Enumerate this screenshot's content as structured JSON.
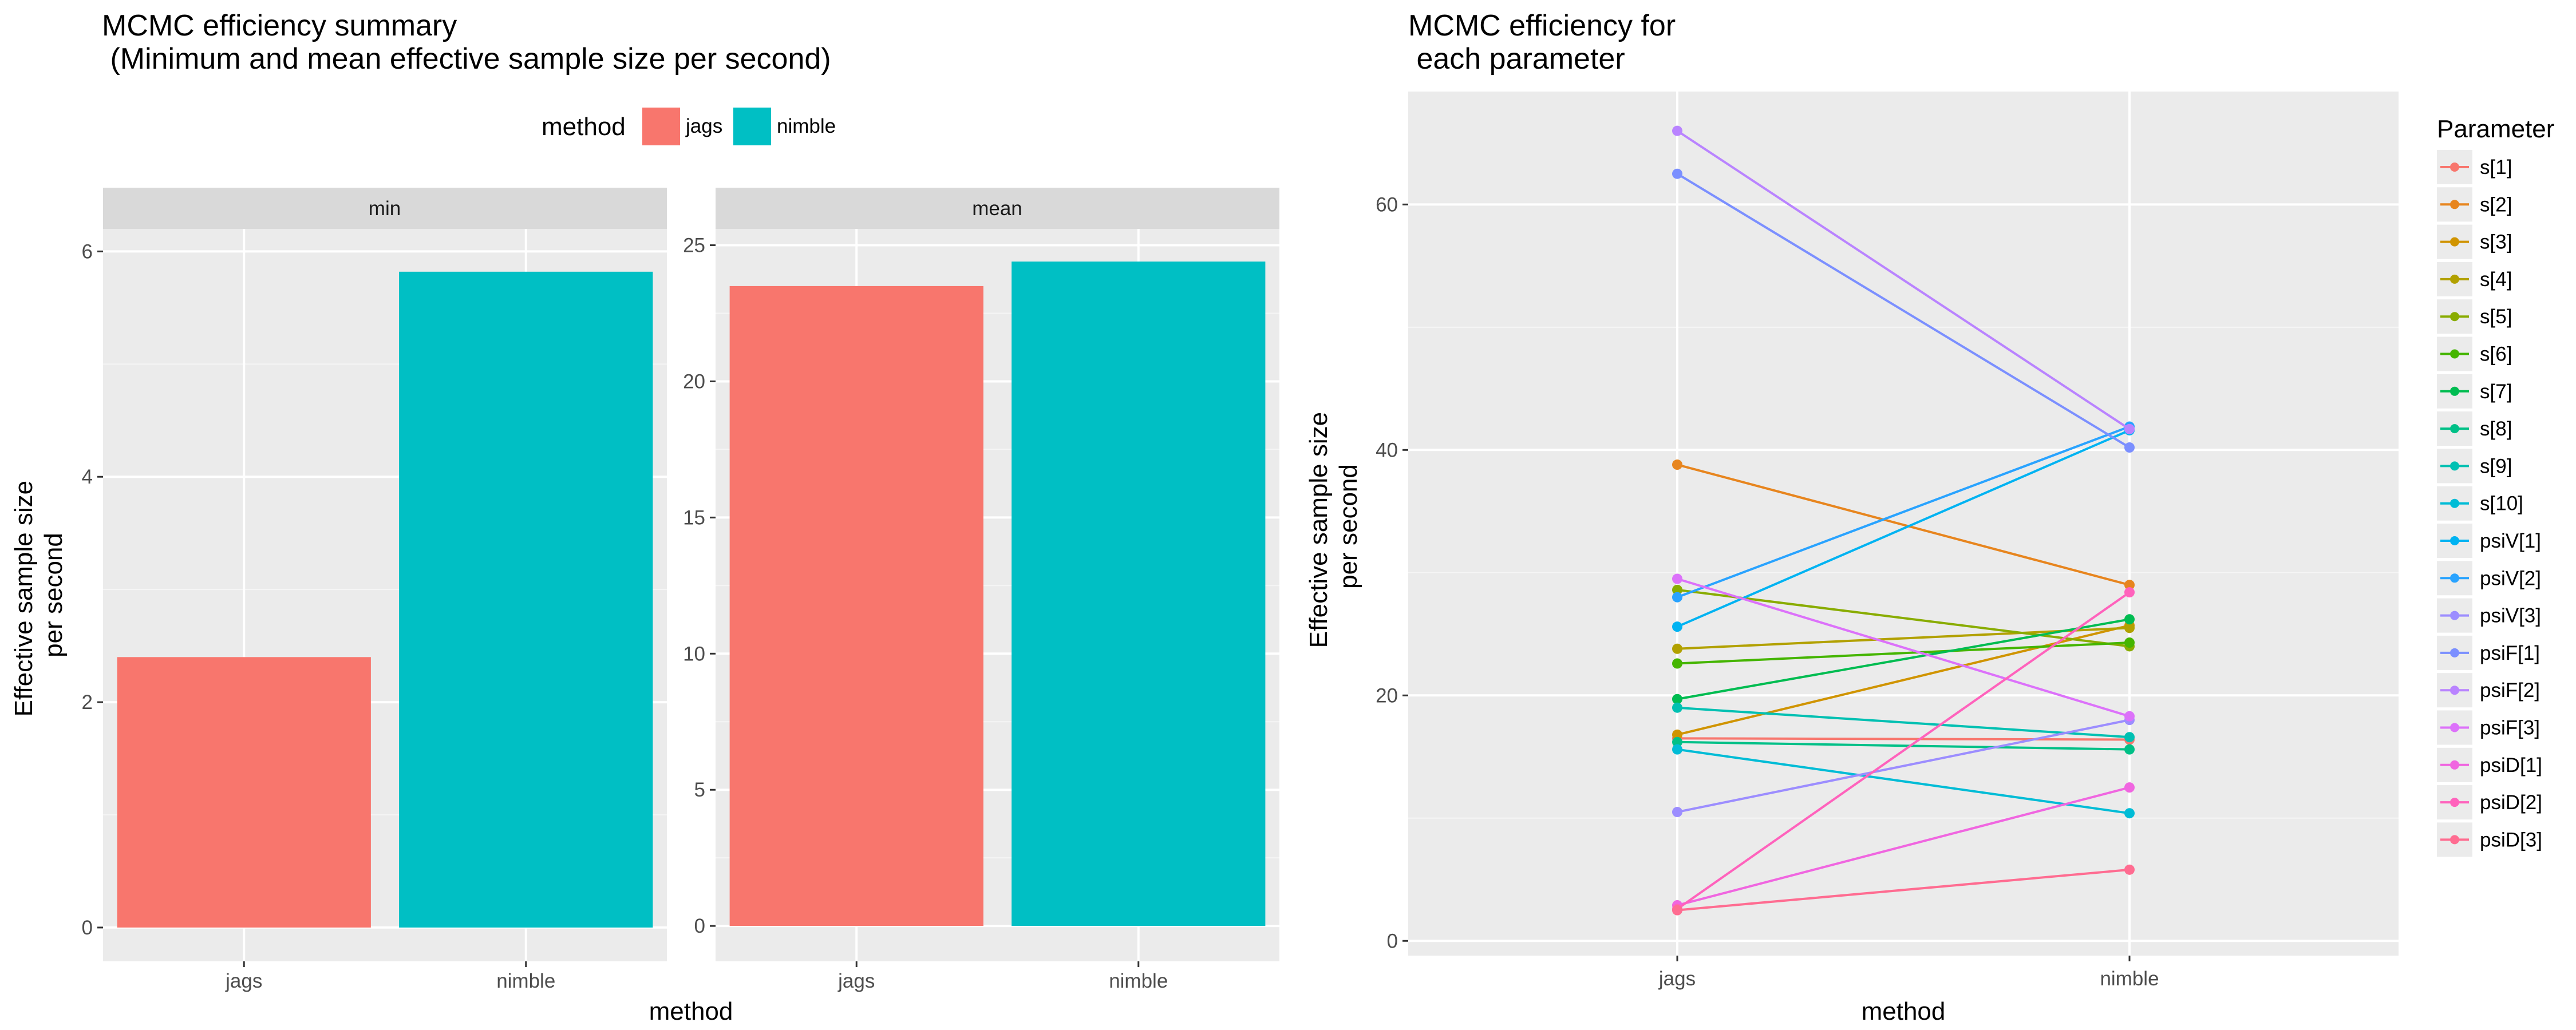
{
  "chart_data": [
    {
      "type": "bar",
      "title": "MCMC efficiency summary",
      "subtitle": " (Minimum and mean effective sample size per second)",
      "xlabel": "method",
      "ylabel": "Effective sample size\nper second",
      "legend_title": "method",
      "legend_placement": "top",
      "categories": [
        "jags",
        "nimble"
      ],
      "colors": {
        "jags": "#F8766D",
        "nimble": "#00BFC4"
      },
      "grid": true,
      "panels": [
        {
          "name": "min",
          "values": [
            2.4,
            5.82
          ],
          "ylim": [
            -0.3,
            6.2
          ],
          "yticks": [
            0,
            2,
            4,
            6
          ],
          "yticklabels": [
            "0",
            "2",
            "4",
            "6"
          ]
        },
        {
          "name": "mean",
          "values": [
            23.5,
            24.4
          ],
          "ylim": [
            -1.3,
            25.6
          ],
          "yticks": [
            0,
            5,
            10,
            15,
            20,
            25
          ],
          "yticklabels": [
            "0",
            "5",
            "10",
            "15",
            "20",
            "25"
          ]
        }
      ]
    },
    {
      "type": "line",
      "title": "MCMC efficiency for",
      "subtitle": " each parameter",
      "xlabel": "method",
      "ylabel": "Effective sample size\nper second",
      "legend_title": "Parameter",
      "legend_placement": "right",
      "categories": [
        "jags",
        "nimble"
      ],
      "ylim": [
        -1.2,
        69.2
      ],
      "yticks": [
        0,
        20,
        40,
        60
      ],
      "yticklabels": [
        "0",
        "20",
        "40",
        "60"
      ],
      "grid": true,
      "series": [
        {
          "name": "s[1]",
          "color": "#F8766D",
          "values": [
            16.5,
            16.4
          ]
        },
        {
          "name": "s[2]",
          "color": "#E7851E",
          "values": [
            38.8,
            29.0
          ]
        },
        {
          "name": "s[3]",
          "color": "#D09400",
          "values": [
            16.8,
            25.7
          ]
        },
        {
          "name": "s[4]",
          "color": "#B2A100",
          "values": [
            23.8,
            25.5
          ]
        },
        {
          "name": "s[5]",
          "color": "#89AC00",
          "values": [
            28.6,
            24.0
          ]
        },
        {
          "name": "s[6]",
          "color": "#45B500",
          "values": [
            22.6,
            24.3
          ]
        },
        {
          "name": "s[7]",
          "color": "#00BC51",
          "values": [
            19.7,
            26.2
          ]
        },
        {
          "name": "s[8]",
          "color": "#00C087",
          "values": [
            16.2,
            15.6
          ]
        },
        {
          "name": "s[9]",
          "color": "#00C0B2",
          "values": [
            19.0,
            16.6
          ]
        },
        {
          "name": "s[10]",
          "color": "#00BCD6",
          "values": [
            15.6,
            10.4
          ]
        },
        {
          "name": "psiV[1]",
          "color": "#00B3F2",
          "values": [
            25.6,
            41.6
          ]
        },
        {
          "name": "psiV[2]",
          "color": "#29A3FF",
          "values": [
            28.0,
            41.9
          ]
        },
        {
          "name": "psiV[3]",
          "color": "#9C8DFF",
          "values": [
            10.5,
            18.0
          ]
        },
        {
          "name": "psiF[1]",
          "color": "#7B8FFF",
          "values": [
            62.5,
            40.2
          ]
        },
        {
          "name": "psiF[2]",
          "color": "#B983FF",
          "values": [
            66.0,
            41.7
          ]
        },
        {
          "name": "psiF[3]",
          "color": "#DC71FA",
          "values": [
            29.5,
            18.3
          ]
        },
        {
          "name": "psiD[1]",
          "color": "#F066E0",
          "values": [
            2.9,
            12.5
          ]
        },
        {
          "name": "psiD[2]",
          "color": "#FF62BC",
          "values": [
            2.6,
            28.4
          ]
        },
        {
          "name": "psiD[3]",
          "color": "#FF6C91",
          "values": [
            2.5,
            5.8
          ]
        }
      ]
    }
  ]
}
